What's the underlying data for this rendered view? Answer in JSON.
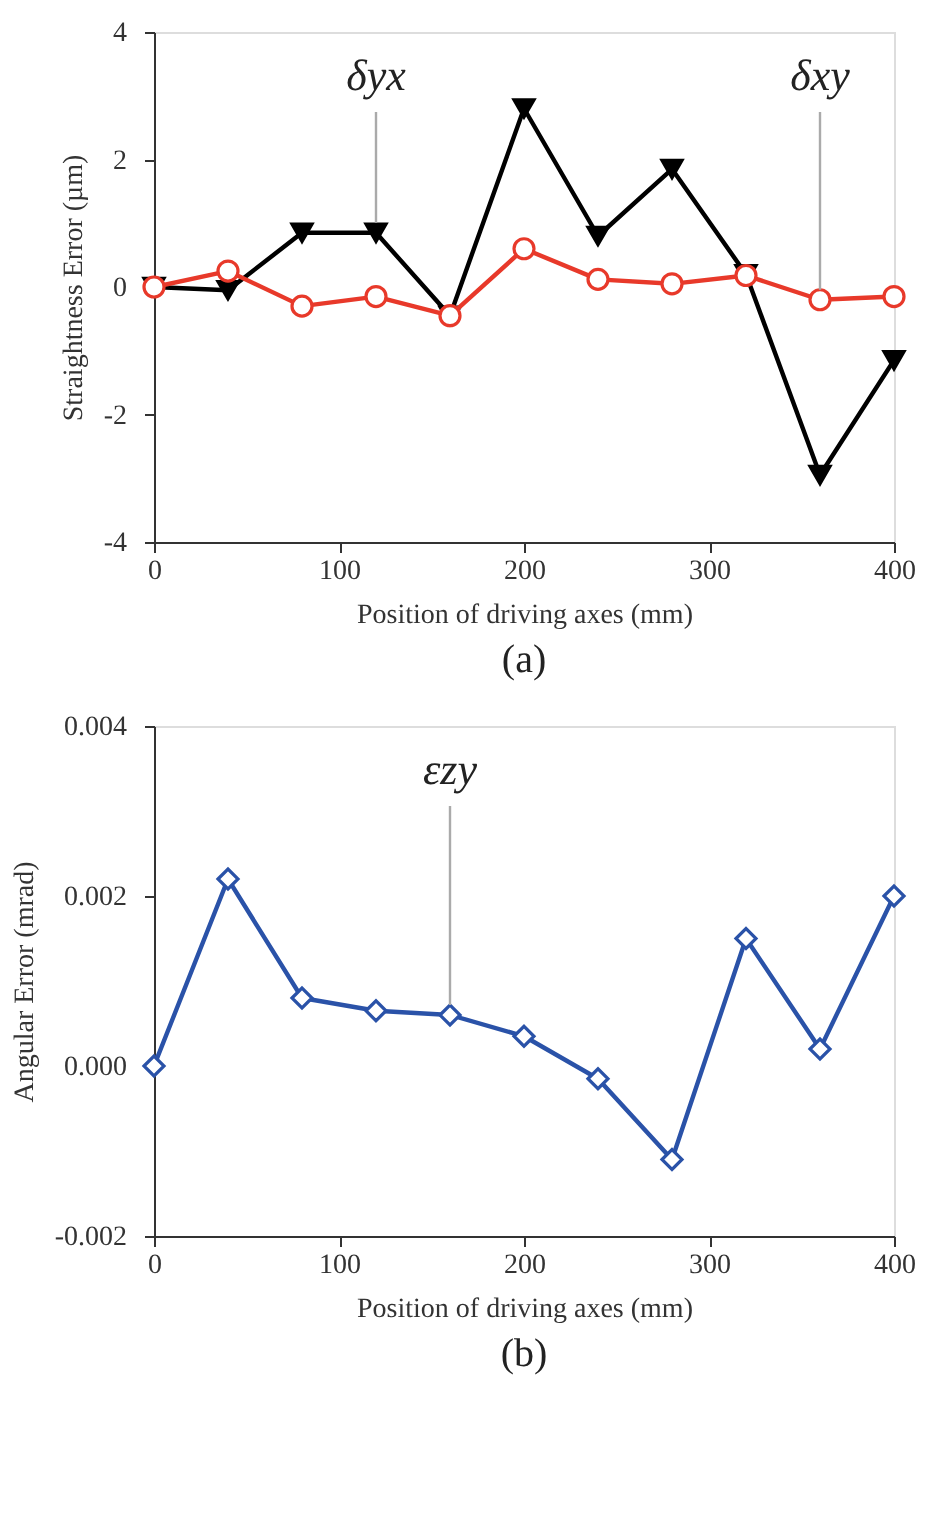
{
  "chart_data": [
    {
      "type": "line",
      "title": "(a)",
      "xlabel": "Position of driving axes (mm)",
      "ylabel": "Straightness Error (µm)",
      "x": [
        0,
        40,
        80,
        120,
        160,
        200,
        240,
        280,
        320,
        360,
        400
      ],
      "xlim": [
        0,
        400
      ],
      "xticks": [
        0,
        100,
        200,
        300,
        400
      ],
      "ylim": [
        -4,
        4
      ],
      "yticks": [
        -4,
        -2,
        0,
        2,
        4
      ],
      "grid": false,
      "line_style": "solid",
      "series": [
        {
          "color": "#000000",
          "marker": "triangle",
          "values": [
            0,
            -0.05,
            0.85,
            0.85,
            -0.45,
            2.8,
            0.8,
            1.85,
            0.2,
            -2.95,
            -1.15
          ]
        },
        {
          "color": "#e8392a",
          "marker": "circle",
          "values": [
            0,
            0.25,
            -0.3,
            -0.15,
            -0.45,
            0.6,
            0.12,
            0.05,
            0.18,
            -0.2,
            -0.15
          ]
        }
      ],
      "annotations": [
        {
          "text": "δyx",
          "x": 120,
          "y": 0.85
        },
        {
          "text": "δxy",
          "x": 360,
          "y": -0.2
        }
      ]
    },
    {
      "type": "line",
      "title": "(b)",
      "xlabel": "Position of driving axes (mm)",
      "ylabel": "Angular Error (mrad)",
      "x": [
        0,
        40,
        80,
        120,
        160,
        200,
        240,
        280,
        320,
        360,
        400
      ],
      "xlim": [
        0,
        400
      ],
      "xticks": [
        0,
        100,
        200,
        300,
        400
      ],
      "ylim": [
        -0.002,
        0.004
      ],
      "yticks": [
        {
          "value": -0.002,
          "label": "-0.002"
        },
        {
          "value": 0,
          "label": "0.000"
        },
        {
          "value": 0.002,
          "label": "0.002"
        },
        {
          "value": 0.004,
          "label": "0.004"
        }
      ],
      "grid": false,
      "line_style": "solid",
      "series": [
        {
          "color": "#2a52a8",
          "marker": "diamond",
          "values": [
            0,
            0.0022,
            0.0008,
            0.00065,
            0.0006,
            0.00035,
            -0.00015,
            -0.0011,
            0.0015,
            0.0002,
            0.002
          ]
        }
      ],
      "annotations": [
        {
          "text": "εzy",
          "x": 160,
          "y": 0.0006
        }
      ]
    }
  ]
}
